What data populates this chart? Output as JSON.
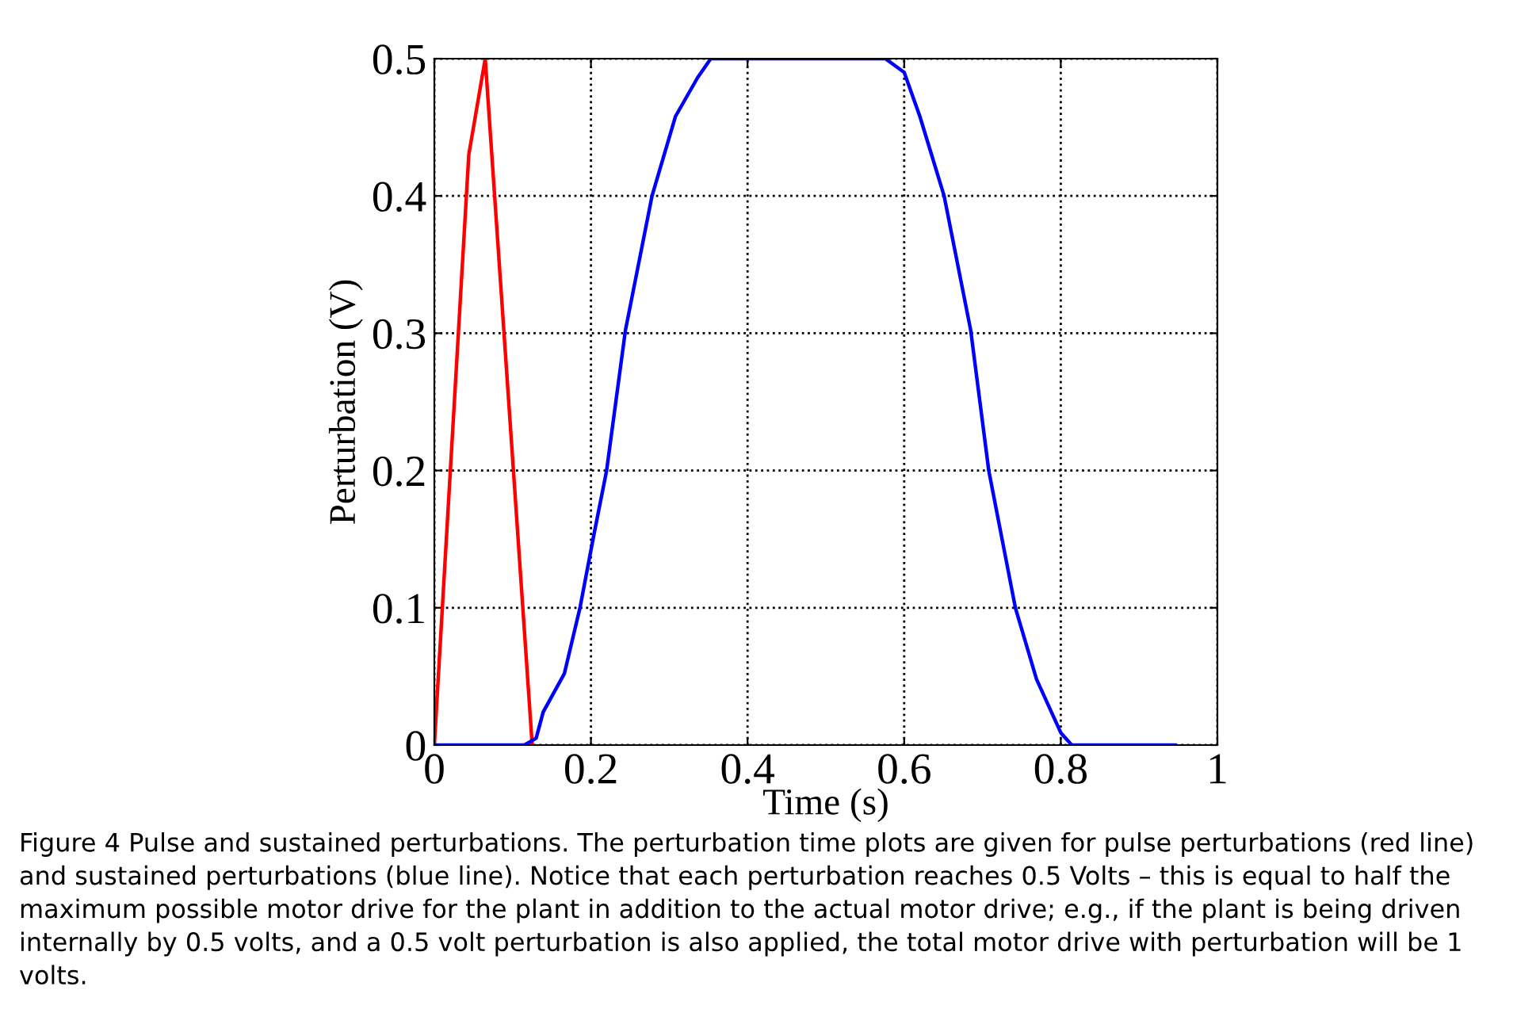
{
  "chart_data": {
    "type": "line",
    "xlabel": "Time (s)",
    "ylabel": "Perturbation (V)",
    "xlim": [
      0,
      1
    ],
    "ylim": [
      0,
      0.5
    ],
    "xticks": [
      0,
      0.2,
      0.4,
      0.6,
      0.8,
      1
    ],
    "yticks": [
      0,
      0.1,
      0.2,
      0.3,
      0.4,
      0.5
    ],
    "grid": true,
    "line_style": "solid",
    "series": [
      {
        "color": "#ff0000",
        "x": [
          0,
          0.044,
          0.065,
          0.125
        ],
        "values": [
          0,
          0.43,
          0.5,
          0
        ]
      },
      {
        "color": "#0000ff",
        "x": [
          0,
          0.115,
          0.13,
          0.139,
          0.166,
          0.186,
          0.203,
          0.22,
          0.244,
          0.278,
          0.308,
          0.336,
          0.353,
          0.576,
          0.6,
          0.62,
          0.651,
          0.685,
          0.708,
          0.742,
          0.769,
          0.8,
          0.814,
          0.946
        ],
        "values": [
          0,
          0,
          0.005,
          0.024,
          0.052,
          0.1,
          0.151,
          0.2,
          0.302,
          0.4,
          0.458,
          0.486,
          0.5,
          0.5,
          0.49,
          0.458,
          0.4,
          0.302,
          0.2,
          0.1,
          0.048,
          0.009,
          0,
          0
        ]
      }
    ],
    "annotations": [
      "Figure 4 Pulse and sustained perturbations. The perturbation time plots are given for pulse perturbations (red line) and sustained perturbations (blue line). Notice that each perturbation reaches 0.5 Volts – this is equal to half the maximum possible motor drive for the plant in addition to the actual motor drive; e.g., if the plant is being driven internally by 0.5 volts, and a 0.5 volt perturbation is also applied, the total motor drive with perturbation will be 1 volts."
    ]
  }
}
